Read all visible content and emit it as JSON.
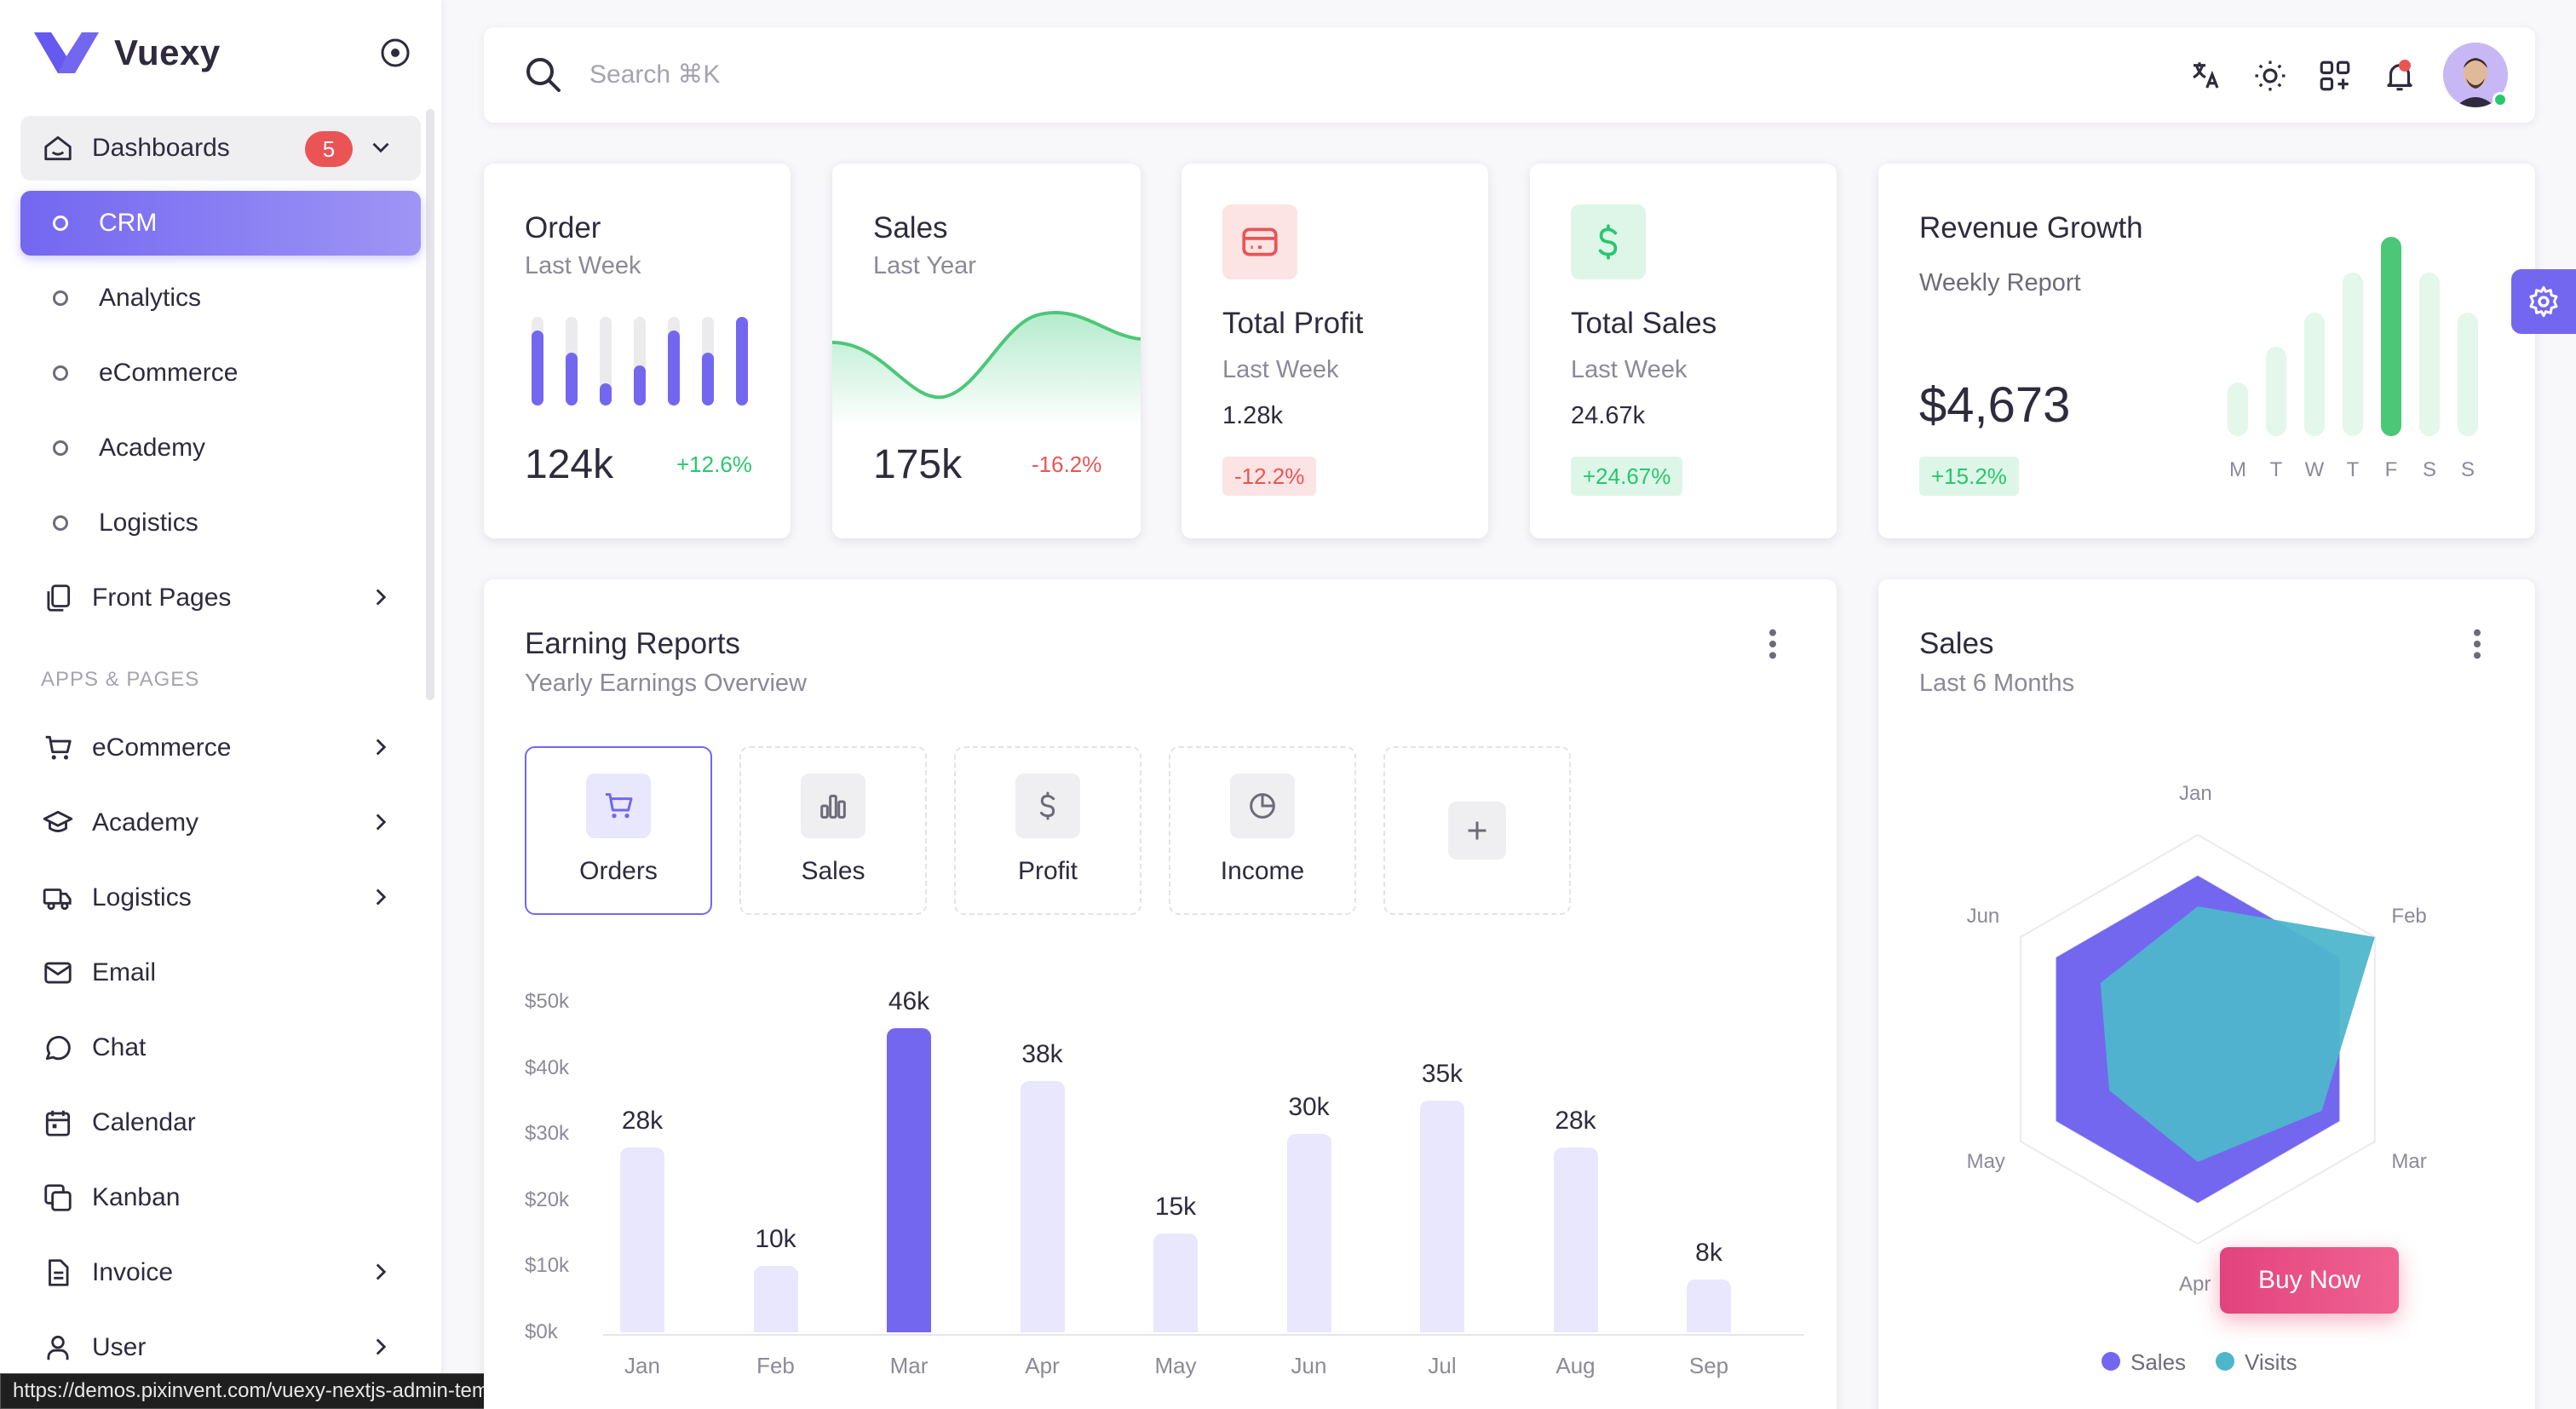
{
  "brand": {
    "name": "Vuexy"
  },
  "sidebar": {
    "dashboards_label": "Dashboards",
    "dashboards_badge": "5",
    "sub_items": [
      "CRM",
      "Analytics",
      "eCommerce",
      "Academy",
      "Logistics"
    ],
    "front_pages": "Front Pages",
    "section_title": "APPS & PAGES",
    "apps": [
      "eCommerce",
      "Academy",
      "Logistics",
      "Email",
      "Chat",
      "Calendar",
      "Kanban",
      "Invoice",
      "User"
    ]
  },
  "status_url": "https://demos.pixinvent.com/vuexy-nextjs-admin-template/demo-1/en/dashboards/crm",
  "search": {
    "placeholder": "Search ⌘K"
  },
  "order_card": {
    "title": "Order",
    "subtitle": "Last Week",
    "value": "124k",
    "change": "+12.6%",
    "bar_levels": [
      0.85,
      0.6,
      0.25,
      0.45,
      0.85,
      0.6,
      1.0
    ]
  },
  "sales_card": {
    "title": "Sales",
    "subtitle": "Last Year",
    "value": "175k",
    "change": "-16.2%"
  },
  "profit_card": {
    "title": "Total Profit",
    "subtitle": "Last Week",
    "value": "1.28k",
    "change": "-12.2%"
  },
  "total_sales_card": {
    "title": "Total Sales",
    "subtitle": "Last Week",
    "value": "24.67k",
    "change": "+24.67%"
  },
  "revenue_card": {
    "title": "Revenue Growth",
    "subtitle": "Weekly Report",
    "value": "$4,673",
    "change": "+15.2%",
    "days": [
      "M",
      "T",
      "W",
      "T",
      "F",
      "S",
      "S"
    ],
    "levels": [
      0.27,
      0.45,
      0.62,
      0.82,
      1.0,
      0.82,
      0.62
    ],
    "highlight_index": 4
  },
  "earning_reports": {
    "title": "Earning Reports",
    "subtitle": "Yearly Earnings Overview",
    "tabs": [
      "Orders",
      "Sales",
      "Profit",
      "Income"
    ]
  },
  "sales_radar": {
    "title": "Sales",
    "subtitle": "Last 6 Months",
    "axes": [
      "Jan",
      "Feb",
      "Mar",
      "Apr",
      "May",
      "Jun"
    ],
    "legend": [
      "Sales",
      "Visits"
    ]
  },
  "buy_now": "Buy Now",
  "colors": {
    "primary": "#7367f0",
    "success": "#28c76f",
    "danger": "#ea5455",
    "info": "#00bad1"
  },
  "chart_data": [
    {
      "type": "bar",
      "categories": [
        "Jan",
        "Feb",
        "Mar",
        "Apr",
        "May",
        "Jun",
        "Jul",
        "Aug",
        "Sep"
      ],
      "values": [
        28,
        10,
        46,
        38,
        15,
        30,
        35,
        28,
        8
      ],
      "data_labels": [
        "28k",
        "10k",
        "46k",
        "38k",
        "15k",
        "30k",
        "35k",
        "28k",
        "8k"
      ],
      "yticks": [
        "$0k",
        "$10k",
        "$20k",
        "$30k",
        "$40k",
        "$50k"
      ],
      "ylim": [
        0,
        50
      ],
      "highlight_index": 2
    },
    {
      "type": "radar",
      "categories": [
        "Jan",
        "Feb",
        "Mar",
        "Apr",
        "May",
        "Jun"
      ],
      "series": [
        {
          "name": "Sales",
          "values": [
            80,
            80,
            80,
            80,
            80,
            80
          ],
          "color": "#7367f0"
        },
        {
          "name": "Visits",
          "values": [
            65,
            100,
            70,
            60,
            50,
            55
          ],
          "color": "#4eb6cb"
        }
      ]
    }
  ]
}
